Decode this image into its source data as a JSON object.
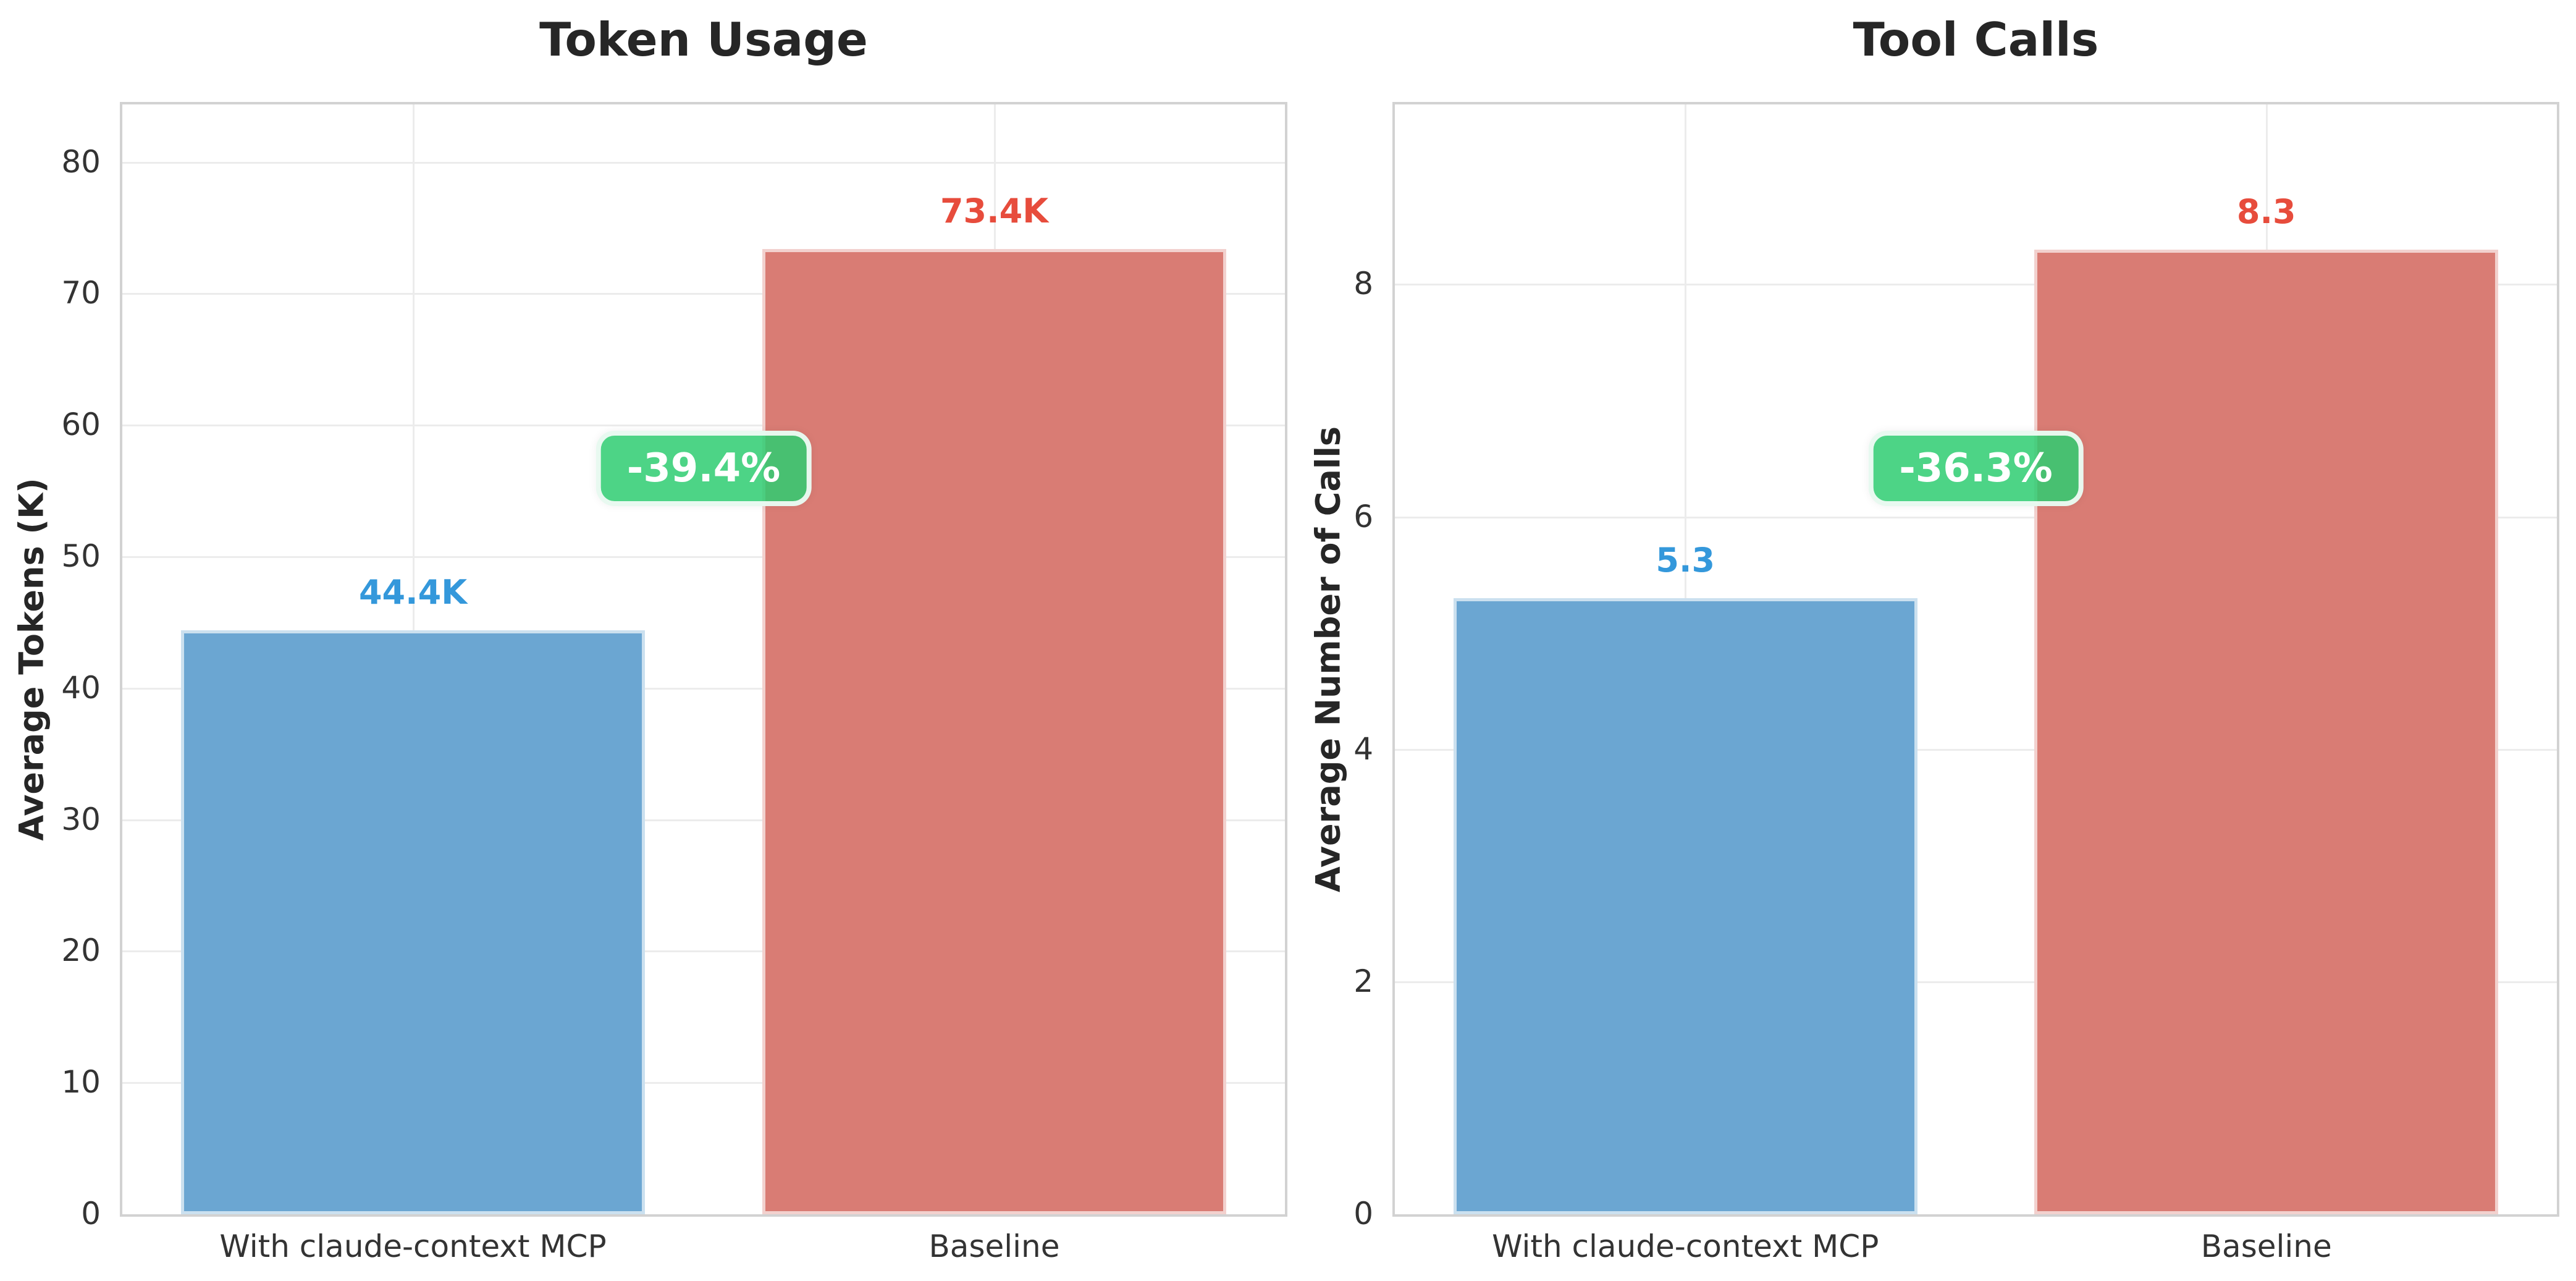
{
  "chart_data": [
    {
      "type": "bar",
      "title": "Token Usage",
      "ylabel": "Average Tokens (K)",
      "categories": [
        "With claude-context MCP",
        "Baseline"
      ],
      "values": [
        44.4,
        73.4
      ],
      "value_labels": [
        "44.4K",
        "73.4K"
      ],
      "yticks": [
        0,
        10,
        20,
        30,
        40,
        50,
        60,
        70,
        80
      ],
      "ylim": [
        0,
        84.4
      ],
      "grid": true,
      "legend": "none",
      "annotation": "-39.4%",
      "bar_colors": [
        "#6ba6d2",
        "#d97c74"
      ],
      "value_label_colors": [
        "#3498db",
        "#e74c3c"
      ]
    },
    {
      "type": "bar",
      "title": "Tool Calls",
      "ylabel": "Average Number of Calls",
      "categories": [
        "With claude-context MCP",
        "Baseline"
      ],
      "values": [
        5.3,
        8.3
      ],
      "value_labels": [
        "5.3",
        "8.3"
      ],
      "yticks": [
        0,
        2,
        4,
        6,
        8
      ],
      "ylim": [
        0,
        9.55
      ],
      "grid": true,
      "legend": "none",
      "annotation": "-36.3%",
      "bar_colors": [
        "#6ba6d2",
        "#d97c74"
      ],
      "value_label_colors": [
        "#3498db",
        "#e74c3c"
      ]
    }
  ],
  "style": {
    "badge_bg": "#2ecc71",
    "badge_text_color": "#ffffff",
    "spine_color": "#d2d2d2",
    "grid_color": "#ececec",
    "title_color": "#262626",
    "tick_color": "#333333",
    "background": "#ffffff"
  }
}
